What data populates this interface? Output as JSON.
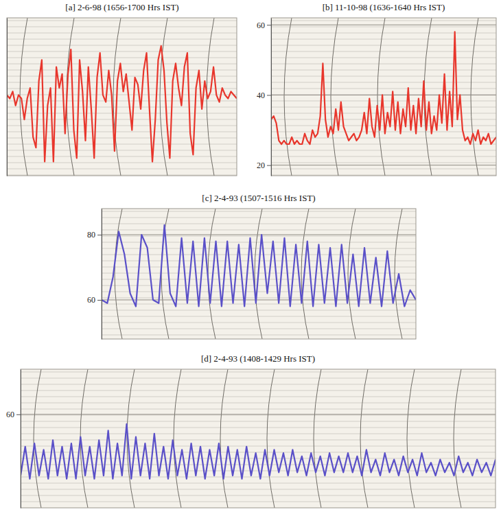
{
  "chart_data": [
    {
      "type": "line",
      "title": "[a] 2-6-98 (1656-1700 Hrs IST)",
      "color": "#e8362c",
      "grid": true,
      "tick_labels": false,
      "ylim": [
        17,
        62
      ],
      "values": [
        40,
        39,
        41,
        37,
        40,
        39,
        33,
        39,
        42,
        28,
        25,
        44,
        50,
        21,
        37,
        42,
        21,
        48,
        42,
        46,
        29,
        46,
        53,
        30,
        22,
        50,
        41,
        27,
        48,
        36,
        22,
        45,
        52,
        40,
        38,
        47,
        40,
        24,
        44,
        49,
        41,
        46,
        38,
        30,
        45,
        43,
        36,
        47,
        52,
        36,
        21,
        33,
        50,
        54,
        47,
        32,
        22,
        44,
        49,
        42,
        37,
        48,
        52,
        29,
        23,
        42,
        47,
        36,
        44,
        39,
        41,
        48,
        40,
        38,
        42,
        40,
        39,
        41,
        40,
        39
      ]
    },
    {
      "type": "line",
      "title": "[b] 11-10-98 (1636-1640 Hrs IST)",
      "color": "#e8362c",
      "grid": true,
      "tick_labels": "y",
      "ylim": [
        17,
        62
      ],
      "yticks": [
        20,
        40,
        60
      ],
      "values": [
        33,
        34,
        32,
        27,
        26,
        27,
        26,
        26,
        28,
        26,
        27,
        26,
        26,
        29,
        27,
        26,
        30,
        28,
        29,
        34,
        49,
        33,
        28,
        31,
        29,
        36,
        30,
        38,
        31,
        29,
        27,
        28,
        29,
        27,
        28,
        30,
        35,
        29,
        39,
        31,
        28,
        37,
        30,
        40,
        29,
        35,
        31,
        41,
        30,
        38,
        29,
        36,
        31,
        42,
        30,
        37,
        29,
        39,
        31,
        44,
        30,
        38,
        29,
        34,
        30,
        40,
        32,
        46,
        30,
        41,
        31,
        58,
        33,
        40,
        30,
        27,
        28,
        26,
        29,
        27,
        30,
        26,
        28,
        27,
        29,
        26,
        27,
        28
      ]
    },
    {
      "type": "line",
      "title": "[c] 2-4-93 (1507-1516 Hrs IST)",
      "color": "#5a50c8",
      "grid": true,
      "tick_labels": "y",
      "ylim": [
        48,
        88
      ],
      "yticks": [
        60,
        80
      ],
      "values": [
        60,
        59,
        67,
        81,
        74,
        62,
        58,
        80,
        76,
        60,
        59,
        83,
        62,
        58,
        79,
        59,
        78,
        58,
        79,
        59,
        78,
        58,
        78,
        59,
        77,
        58,
        79,
        59,
        80,
        62,
        78,
        59,
        79,
        58,
        77,
        59,
        78,
        58,
        77,
        59,
        76,
        58,
        77,
        59,
        74,
        58,
        76,
        59,
        73,
        58,
        75,
        59,
        68,
        58,
        63,
        60
      ]
    },
    {
      "type": "line",
      "title": "[d] 2-4-93 (1408-1429 Hrs IST)",
      "color": "#5a50c8",
      "grid": true,
      "tick_labels": "y",
      "ylim": [
        31,
        74
      ],
      "yticks": [
        60
      ],
      "values": [
        41,
        50,
        40,
        51,
        41,
        49,
        40,
        52,
        41,
        50,
        40,
        51,
        40,
        53,
        41,
        50,
        40,
        52,
        41,
        55,
        40,
        51,
        41,
        57,
        40,
        53,
        41,
        51,
        40,
        54,
        41,
        50,
        40,
        52,
        41,
        49,
        40,
        51,
        41,
        50,
        40,
        49,
        41,
        51,
        40,
        50,
        41,
        49,
        40,
        50,
        41,
        48,
        40,
        49,
        41,
        49,
        42,
        48,
        41,
        49,
        42,
        47,
        41,
        48,
        42,
        47,
        41,
        48,
        42,
        47,
        42,
        48,
        42,
        47,
        41,
        49,
        42,
        46,
        41,
        48,
        42,
        46,
        41,
        47,
        42,
        46,
        41,
        48,
        42,
        45,
        41,
        46,
        42,
        45,
        41,
        47,
        42,
        45,
        41,
        46,
        42,
        45,
        41,
        46
      ]
    }
  ]
}
